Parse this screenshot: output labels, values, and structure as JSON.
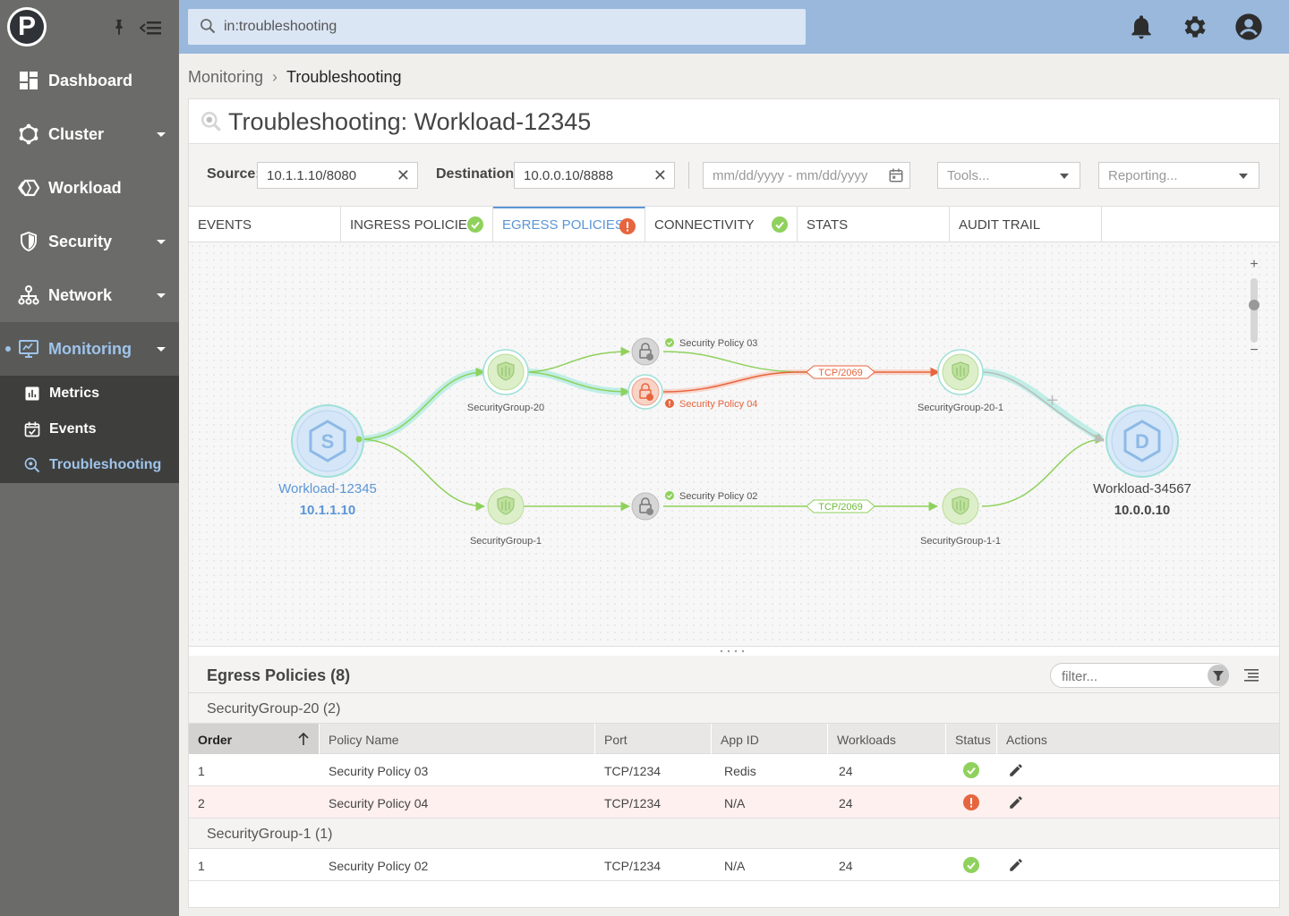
{
  "search": {
    "value": "in:troubleshooting"
  },
  "sidebar": {
    "items": [
      {
        "label": "Dashboard"
      },
      {
        "label": "Cluster"
      },
      {
        "label": "Workload"
      },
      {
        "label": "Security"
      },
      {
        "label": "Network"
      },
      {
        "label": "Monitoring"
      }
    ],
    "subitems": [
      {
        "label": "Metrics"
      },
      {
        "label": "Events"
      },
      {
        "label": "Troubleshooting"
      }
    ]
  },
  "breadcrumb": {
    "parent": "Monitoring",
    "current": "Troubleshooting"
  },
  "page": {
    "title": "Troubleshooting: Workload-12345"
  },
  "filters": {
    "source_label": "Source:",
    "source_value": "10.1.1.10/8080",
    "destination_label": "Destination:",
    "destination_value": "10.0.0.10/8888",
    "date_placeholder": "mm/dd/yyyy - mm/dd/yyyy",
    "tools": "Tools...",
    "reporting": "Reporting..."
  },
  "tabs": [
    {
      "label": "EVENTS",
      "status": ""
    },
    {
      "label": "INGRESS POLICIES",
      "status": "ok"
    },
    {
      "label": "EGRESS POLICIES",
      "status": "error"
    },
    {
      "label": "CONNECTIVITY",
      "status": "ok"
    },
    {
      "label": "STATS",
      "status": ""
    },
    {
      "label": "AUDIT TRAIL",
      "status": ""
    }
  ],
  "graph": {
    "source": {
      "letter": "S",
      "name": "Workload-12345",
      "ip": "10.1.1.10"
    },
    "destination": {
      "letter": "D",
      "name": "Workload-34567",
      "ip": "10.0.0.10"
    },
    "groups": {
      "sg20": "SecurityGroup-20",
      "sg1": "SecurityGroup-1",
      "sg201": "SecurityGroup-20-1",
      "sg11": "SecurityGroup-1-1"
    },
    "policies": {
      "p03": "Security Policy 03",
      "p04": "Security Policy 04",
      "p02": "Security Policy 02"
    },
    "ports": {
      "top": "TCP/2069",
      "bottom": "TCP/2069"
    },
    "zoom": {
      "plus": "+",
      "minus": "−"
    }
  },
  "policies_panel": {
    "title": "Egress Policies (8)",
    "filter_placeholder": "filter...",
    "columns": [
      "Order",
      "Policy Name",
      "Port",
      "App ID",
      "Workloads",
      "Status",
      "Actions"
    ],
    "groups": [
      {
        "title": "SecurityGroup-20 (2)",
        "rows": [
          {
            "order": "1",
            "name": "Security Policy 03",
            "port": "TCP/1234",
            "app": "Redis",
            "workloads": "24",
            "status": "ok"
          },
          {
            "order": "2",
            "name": "Security Policy 04",
            "port": "TCP/1234",
            "app": "N/A",
            "workloads": "24",
            "status": "error"
          }
        ]
      },
      {
        "title": "SecurityGroup-1 (1)",
        "rows": [
          {
            "order": "1",
            "name": "Security Policy 02",
            "port": "TCP/1234",
            "app": "N/A",
            "workloads": "24",
            "status": "ok"
          }
        ]
      }
    ]
  },
  "colors": {
    "accent": "#5b95d6",
    "ok": "#8fd15c",
    "error": "#e7653e",
    "sidebar": "#6b6c6a",
    "topbar": "#99b8dc"
  }
}
